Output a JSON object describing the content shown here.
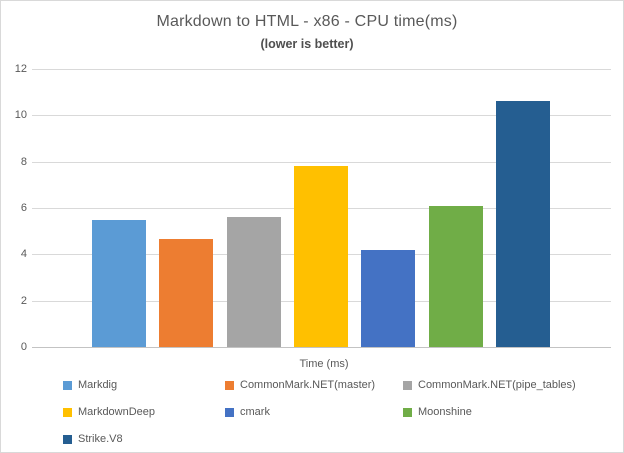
{
  "chart_data": {
    "type": "bar",
    "title": "Markdown to HTML - x86 - CPU time(ms)",
    "subtitle": "(lower is better)",
    "xlabel": "Time (ms)",
    "ylabel": "",
    "ylim": [
      0,
      12
    ],
    "yticks": [
      0,
      2,
      4,
      6,
      8,
      10,
      12
    ],
    "grid": true,
    "legend_position": "bottom",
    "categories": [
      "Markdig",
      "CommonMark.NET(master)",
      "CommonMark.NET(pipe_tables)",
      "MarkdownDeep",
      "cmark",
      "Moonshine",
      "Strike.V8"
    ],
    "values": [
      5.5,
      4.65,
      5.6,
      7.8,
      4.2,
      6.1,
      10.6
    ],
    "colors": [
      "#5B9BD5",
      "#ED7D31",
      "#A5A5A5",
      "#FFC000",
      "#4472C4",
      "#70AD47",
      "#255E91"
    ],
    "text_color": "#595959",
    "gridline_color": "#D9D9D9",
    "axis_line_color": "#C3C3C3",
    "border_color": "#D9D9D9"
  }
}
